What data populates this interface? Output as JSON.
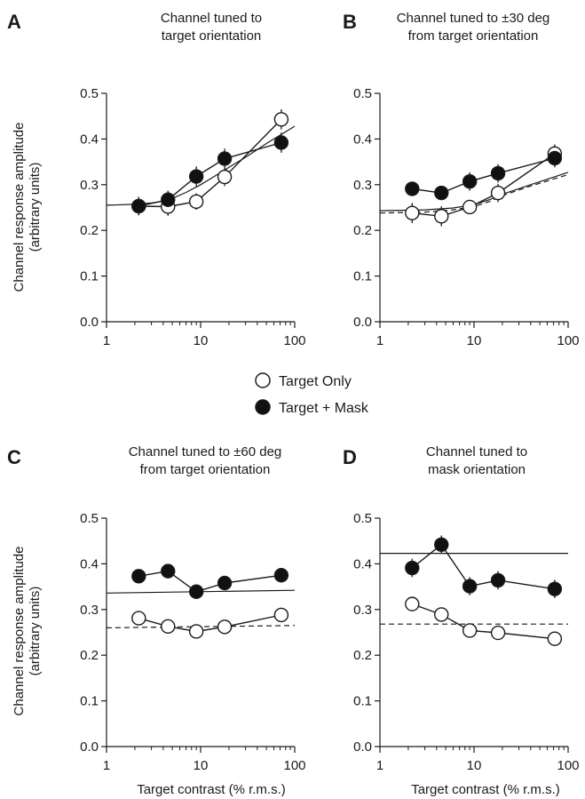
{
  "ylabel_line1": "Channel response amplitude",
  "ylabel_line2": "(arbitrary units)",
  "xlabel": "Target contrast (% r.m.s.)",
  "legend": {
    "target_only": "Target Only",
    "target_mask": "Target + Mask",
    "placement": "center"
  },
  "colors": {
    "ink": "#1a1a1a",
    "open_fill": "#ffffff",
    "filled": "#111111"
  },
  "chart_data": [
    {
      "letter": "A",
      "title": [
        "Channel tuned to",
        "target orientation"
      ],
      "type": "scatter",
      "xscale": "log",
      "xlim": [
        1,
        100
      ],
      "ylim": [
        0,
        0.5
      ],
      "xticks": [
        "1",
        "10",
        "100"
      ],
      "yticks": [
        "0.0",
        "0.1",
        "0.2",
        "0.3",
        "0.4",
        "0.5"
      ],
      "series": [
        {
          "name": "Target Only",
          "marker": "open",
          "x": [
            2.2,
            4.5,
            9,
            18,
            72
          ],
          "y": [
            0.253,
            0.252,
            0.263,
            0.317,
            0.443
          ],
          "err": [
            0.02,
            0.02,
            0.018,
            0.02,
            0.022
          ]
        },
        {
          "name": "Target + Mask",
          "marker": "filled",
          "x": [
            2.2,
            4.5,
            9,
            18,
            72
          ],
          "y": [
            0.253,
            0.267,
            0.318,
            0.357,
            0.392
          ],
          "err": [
            0.02,
            0.02,
            0.022,
            0.022,
            0.022
          ]
        }
      ],
      "fits": [
        {
          "style": "solid",
          "x": [
            1,
            2,
            3,
            4,
            5,
            7,
            10,
            15,
            20,
            30,
            50,
            100
          ],
          "y": [
            0.255,
            0.257,
            0.26,
            0.264,
            0.27,
            0.283,
            0.3,
            0.322,
            0.338,
            0.36,
            0.39,
            0.428
          ]
        }
      ]
    },
    {
      "letter": "B",
      "title": [
        "Channel tuned to ±30 deg",
        "from target orientation"
      ],
      "type": "scatter",
      "xscale": "log",
      "xlim": [
        1,
        100
      ],
      "ylim": [
        0,
        0.5
      ],
      "xticks": [
        "1",
        "10",
        "100"
      ],
      "yticks": [
        "0.0",
        "0.1",
        "0.2",
        "0.3",
        "0.4",
        "0.5"
      ],
      "series": [
        {
          "name": "Target Only",
          "marker": "open",
          "x": [
            2.2,
            4.5,
            9,
            18,
            72
          ],
          "y": [
            0.238,
            0.231,
            0.251,
            0.282,
            0.368
          ],
          "err": [
            0.022,
            0.022,
            0.015,
            0.02,
            0.02
          ]
        },
        {
          "name": "Target + Mask",
          "marker": "filled",
          "x": [
            2.2,
            4.5,
            9,
            18,
            72
          ],
          "y": [
            0.291,
            0.282,
            0.307,
            0.325,
            0.358
          ],
          "err": [
            0.015,
            0.015,
            0.02,
            0.02,
            0.02
          ]
        }
      ],
      "fits": [
        {
          "style": "solid",
          "x": [
            1,
            3,
            6,
            10,
            15,
            20,
            40,
            100
          ],
          "y": [
            0.243,
            0.245,
            0.249,
            0.256,
            0.268,
            0.279,
            0.3,
            0.327
          ]
        },
        {
          "style": "dashed",
          "x": [
            1,
            3,
            6,
            10,
            15,
            20,
            40,
            100
          ],
          "y": [
            0.238,
            0.24,
            0.245,
            0.252,
            0.264,
            0.276,
            0.297,
            0.322
          ]
        }
      ]
    },
    {
      "letter": "C",
      "title": [
        "Channel tuned to ±60 deg",
        "from target orientation"
      ],
      "type": "scatter",
      "xscale": "log",
      "xlim": [
        1,
        100
      ],
      "ylim": [
        0,
        0.5
      ],
      "xticks": [
        "1",
        "10",
        "100"
      ],
      "yticks": [
        "0.0",
        "0.1",
        "0.2",
        "0.3",
        "0.4",
        "0.5"
      ],
      "series": [
        {
          "name": "Target Only",
          "marker": "open",
          "x": [
            2.2,
            4.5,
            9,
            18,
            72
          ],
          "y": [
            0.281,
            0.263,
            0.252,
            0.262,
            0.288
          ],
          "err": [
            0.015,
            0.015,
            0.015,
            0.01,
            0.015
          ]
        },
        {
          "name": "Target + Mask",
          "marker": "filled",
          "x": [
            2.2,
            4.5,
            9,
            18,
            72
          ],
          "y": [
            0.373,
            0.384,
            0.339,
            0.358,
            0.375
          ],
          "err": [
            0.015,
            0.015,
            0.015,
            0.015,
            0.015
          ]
        }
      ],
      "fits": [
        {
          "style": "solid",
          "x": [
            1,
            100
          ],
          "y": [
            0.336,
            0.342
          ]
        },
        {
          "style": "dashed",
          "x": [
            1,
            100
          ],
          "y": [
            0.26,
            0.265
          ]
        }
      ]
    },
    {
      "letter": "D",
      "title": [
        "Channel tuned to",
        "mask orientation"
      ],
      "type": "scatter",
      "xscale": "log",
      "xlim": [
        1,
        100
      ],
      "ylim": [
        0,
        0.5
      ],
      "xticks": [
        "1",
        "10",
        "100"
      ],
      "yticks": [
        "0.0",
        "0.1",
        "0.2",
        "0.3",
        "0.4",
        "0.5"
      ],
      "series": [
        {
          "name": "Target Only",
          "marker": "open",
          "x": [
            2.2,
            4.5,
            9,
            18,
            72
          ],
          "y": [
            0.312,
            0.289,
            0.254,
            0.249,
            0.236
          ],
          "err": [
            0.015,
            0.015,
            0.015,
            0.015,
            0.015
          ]
        },
        {
          "name": "Target + Mask",
          "marker": "filled",
          "x": [
            2.2,
            4.5,
            9,
            18,
            72
          ],
          "y": [
            0.391,
            0.442,
            0.351,
            0.364,
            0.345
          ],
          "err": [
            0.02,
            0.02,
            0.02,
            0.02,
            0.02
          ]
        }
      ],
      "fits": [
        {
          "style": "solid",
          "x": [
            1,
            100
          ],
          "y": [
            0.423,
            0.423
          ]
        },
        {
          "style": "dashed",
          "x": [
            1,
            100
          ],
          "y": [
            0.268,
            0.268
          ]
        }
      ]
    }
  ]
}
